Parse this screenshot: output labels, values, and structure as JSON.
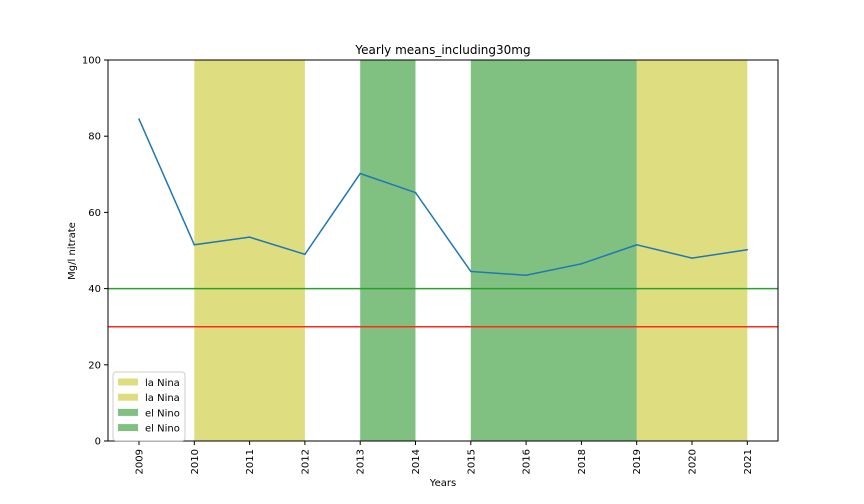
{
  "chart_data": {
    "type": "line",
    "title": "Yearly means_including30mg",
    "xlabel": "Years",
    "ylabel": "Mg/l nitrate",
    "categories": [
      "2009",
      "2010",
      "2011",
      "2012",
      "2013",
      "2014",
      "2015",
      "2016",
      "2018",
      "2019",
      "2020",
      "2021"
    ],
    "ylim": [
      0,
      100
    ],
    "yticks": [
      0,
      20,
      40,
      60,
      80,
      100
    ],
    "series": [
      {
        "values": [
          84.5,
          51.5,
          53.5,
          49.0,
          70.2,
          65.2,
          44.5,
          43.5,
          46.5,
          51.5,
          48.0,
          50.2
        ],
        "color": "#1f77b4"
      }
    ],
    "shaded_regions": [
      {
        "label": "la Nina",
        "from": "2010",
        "to": "2012",
        "color": "#dede80"
      },
      {
        "label": "la Nina",
        "from": "2019",
        "to": "2021",
        "color": "#dede80"
      },
      {
        "label": "el Nino",
        "from": "2013",
        "to": "2014",
        "color": "#80c080"
      },
      {
        "label": "el Nino",
        "from": "2015",
        "to": "2019",
        "color": "#80c080"
      }
    ],
    "reference_lines": [
      {
        "y": 40,
        "color": "#2ca02c"
      },
      {
        "y": 30,
        "color": "#ff2a1a"
      }
    ],
    "legend": {
      "position": "lower-left",
      "entries": [
        {
          "label": "la Nina",
          "color": "#dede80"
        },
        {
          "label": "la Nina",
          "color": "#dede80"
        },
        {
          "label": "el Nino",
          "color": "#80c080"
        },
        {
          "label": "el Nino",
          "color": "#80c080"
        }
      ]
    },
    "grid": false
  }
}
